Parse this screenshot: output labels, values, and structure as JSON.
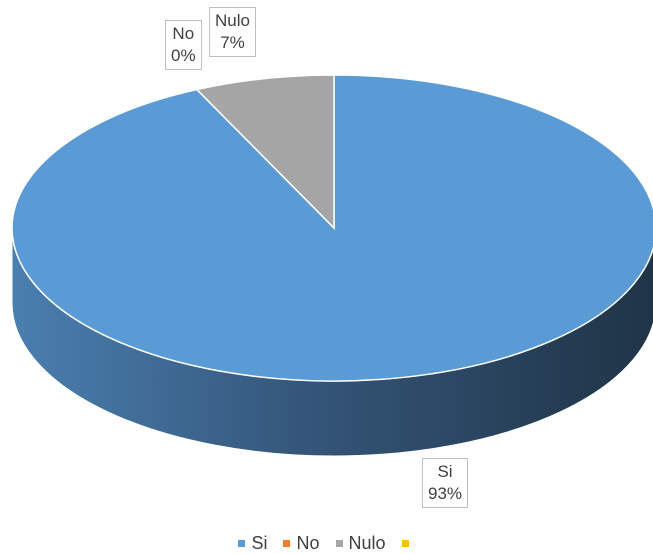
{
  "chart_data": {
    "type": "pie",
    "title": "",
    "categories": [
      "Si",
      "No",
      "Nulo",
      ""
    ],
    "values": [
      93,
      0,
      7,
      0
    ],
    "colors": [
      "#5b9bd5",
      "#ed7d31",
      "#a5a5a5",
      "#ffc000"
    ],
    "data_labels": [
      {
        "category": "Si",
        "value": "93%"
      },
      {
        "category": "No",
        "value": "0%"
      },
      {
        "category": "Nulo",
        "value": "7%"
      }
    ],
    "legend": [
      "Si",
      "No",
      "Nulo",
      ""
    ],
    "legend_position": "bottom",
    "style": "3D pie"
  }
}
